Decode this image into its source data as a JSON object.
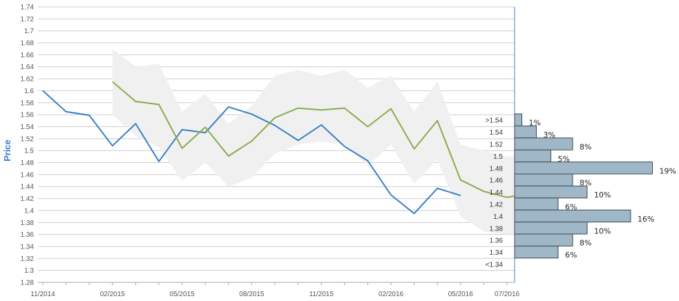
{
  "chart_data": {
    "type": "line",
    "ylabel": "Price",
    "ylim": [
      1.28,
      1.74
    ],
    "y_ticks": [
      "1.28",
      "1.3",
      "1.32",
      "1.34",
      "1.36",
      "1.38",
      "1.4",
      "1.42",
      "1.44",
      "1.46",
      "1.48",
      "1.5",
      "1.52",
      "1.54",
      "1.56",
      "1.58",
      "1.6",
      "1.62",
      "1.64",
      "1.66",
      "1.68",
      "1.7",
      "1.72",
      "1.74"
    ],
    "x_tick_labels": [
      "11/2014",
      "02/2015",
      "05/2015",
      "08/2015",
      "11/2015",
      "02/2016",
      "05/2016",
      "07/2016"
    ],
    "grid": true,
    "colors": {
      "actual": "#3a7fc4",
      "forecast": "#8aab4a",
      "band": "#f0f0f0",
      "bars": "#9fb7c7",
      "bar_stroke": "#3a4a55",
      "axis_y": "#3a7fc4"
    },
    "series": [
      {
        "key": "actual",
        "x": [
          "2014-11",
          "2014-12",
          "2015-01",
          "2015-02",
          "2015-03",
          "2015-04",
          "2015-05",
          "2015-06",
          "2015-07",
          "2015-08",
          "2015-09",
          "2015-10",
          "2015-11",
          "2015-12",
          "2016-01",
          "2016-02",
          "2016-03",
          "2016-04",
          "2016-05"
        ],
        "values": [
          1.6,
          1.565,
          1.559,
          1.508,
          1.545,
          1.482,
          1.535,
          1.53,
          1.573,
          1.561,
          1.542,
          1.517,
          1.543,
          1.507,
          1.483,
          1.426,
          1.395,
          1.437,
          1.425
        ]
      },
      {
        "key": "forecast",
        "x": [
          "2015-02",
          "2015-03",
          "2015-04",
          "2015-05",
          "2015-06",
          "2015-07",
          "2015-08",
          "2015-09",
          "2015-10",
          "2015-11",
          "2015-12",
          "2016-01",
          "2016-02",
          "2016-03",
          "2016-04",
          "2016-05",
          "2016-06",
          "2016-07",
          "2016-08"
        ],
        "values": [
          1.615,
          1.582,
          1.577,
          1.504,
          1.539,
          1.491,
          1.516,
          1.555,
          1.571,
          1.568,
          1.571,
          1.54,
          1.57,
          1.503,
          1.55,
          1.451,
          1.432,
          1.422,
          1.428
        ]
      }
    ],
    "band": {
      "x": [
        "2015-02",
        "2015-03",
        "2015-04",
        "2015-05",
        "2015-06",
        "2015-07",
        "2015-08",
        "2015-09",
        "2015-10",
        "2015-11",
        "2015-12",
        "2016-01",
        "2016-02",
        "2016-03",
        "2016-04",
        "2016-05",
        "2016-06",
        "2016-07",
        "2016-08"
      ],
      "upper": [
        1.67,
        1.64,
        1.645,
        1.565,
        1.595,
        1.545,
        1.575,
        1.625,
        1.635,
        1.625,
        1.635,
        1.605,
        1.625,
        1.565,
        1.615,
        1.51,
        1.5,
        1.49,
        1.49
      ],
      "lower": [
        1.56,
        1.525,
        1.505,
        1.45,
        1.48,
        1.44,
        1.455,
        1.495,
        1.51,
        1.515,
        1.51,
        1.475,
        1.51,
        1.445,
        1.485,
        1.39,
        1.365,
        1.36,
        1.36
      ]
    },
    "histogram": {
      "bins": [
        {
          "label": ">1.54",
          "pct": "1%",
          "value": 1
        },
        {
          "label": "1.54",
          "pct": "3%",
          "value": 3
        },
        {
          "label": "1.52",
          "pct": "8%",
          "value": 8
        },
        {
          "label": "1.5",
          "pct": "5%",
          "value": 5
        },
        {
          "label": "1.48",
          "pct": "19%",
          "value": 19
        },
        {
          "label": "1.46",
          "pct": "8%",
          "value": 8
        },
        {
          "label": "1.44",
          "pct": "10%",
          "value": 10
        },
        {
          "label": "1.42",
          "pct": "6%",
          "value": 6
        },
        {
          "label": "1.4",
          "pct": "16%",
          "value": 16
        },
        {
          "label": "1.38",
          "pct": "10%",
          "value": 10
        },
        {
          "label": "1.36",
          "pct": "8%",
          "value": 8
        },
        {
          "label": "1.34",
          "pct": "6%",
          "value": 6
        },
        {
          "label": "<1.34",
          "pct": "",
          "value": 0
        }
      ]
    }
  }
}
